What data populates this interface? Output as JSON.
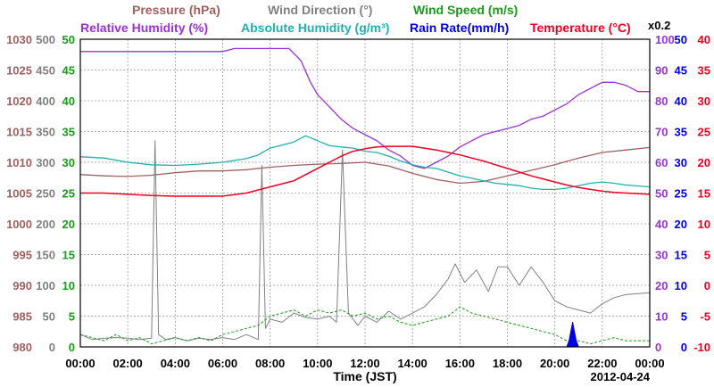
{
  "chart_data": {
    "type": "line",
    "date_label": "2012-04-24",
    "xlabel": "Time (JST)",
    "x_ticks": [
      "00:00",
      "02:00",
      "04:00",
      "06:00",
      "08:00",
      "10:00",
      "12:00",
      "14:00",
      "16:00",
      "18:00",
      "20:00",
      "22:00",
      "00:00"
    ],
    "xlim_hours": [
      0,
      24
    ],
    "grid": true,
    "scale_note": "x0.2",
    "colors": {
      "pressure": "#a0605f",
      "wind_direction": "#808080",
      "wind_speed": "#1a9a1a",
      "humidity": "#9b30d9",
      "abs_humidity": "#20b0b0",
      "rain": "#0000dd",
      "temperature": "#ee0022"
    },
    "header_rows": [
      [
        {
          "key": "pressure",
          "text": "Pressure (hPa)"
        },
        {
          "key": "wind_direction",
          "text": "Wind Direction (°)"
        },
        {
          "key": "wind_speed",
          "text": "Wind Speed (m/s)"
        }
      ],
      [
        {
          "key": "humidity",
          "text": "Relative Humidity (%)"
        },
        {
          "key": "abs_humidity",
          "text": "Absolute Humidity (g/m³)"
        },
        {
          "key": "rain",
          "text": "Rain Rate(mm/h)"
        },
        {
          "key": "temperature",
          "text": "Temperature (°C)"
        }
      ]
    ],
    "axes": [
      {
        "key": "pressure",
        "side": "left",
        "ticks": [
          "980",
          "985",
          "990",
          "995",
          "1000",
          "1005",
          "1010",
          "1015",
          "1020",
          "1025",
          "1030"
        ]
      },
      {
        "key": "wind_direction",
        "side": "left",
        "ticks": [
          "0",
          "50",
          "100",
          "150",
          "200",
          "250",
          "300",
          "350",
          "400",
          "450",
          "500"
        ]
      },
      {
        "key": "wind_speed",
        "side": "left",
        "ticks": [
          "0",
          "5",
          "10",
          "15",
          "20",
          "25",
          "30",
          "35",
          "40",
          "45",
          "50"
        ]
      },
      {
        "key": "humidity",
        "side": "right",
        "ticks": [
          "0",
          "10",
          "20",
          "30",
          "40",
          "50",
          "60",
          "70",
          "80",
          "90",
          "100"
        ]
      },
      {
        "key": "rain",
        "side": "right",
        "ticks": [
          "0",
          "5",
          "10",
          "15",
          "20",
          "25",
          "30",
          "35",
          "40",
          "45",
          "50"
        ]
      },
      {
        "key": "temperature",
        "side": "right",
        "ticks": [
          "-10",
          "-5",
          "0",
          "5",
          "10",
          "15",
          "20",
          "25",
          "30",
          "35",
          "40"
        ]
      }
    ],
    "series": [
      {
        "key": "pressure",
        "name": "Pressure (hPa)",
        "ylim": [
          980,
          1030
        ],
        "points": [
          [
            0,
            1008
          ],
          [
            1,
            1007.8
          ],
          [
            2,
            1007.7
          ],
          [
            3,
            1007.9
          ],
          [
            4,
            1008.3
          ],
          [
            5,
            1008.6
          ],
          [
            6,
            1008.6
          ],
          [
            7,
            1008.8
          ],
          [
            8,
            1009.2
          ],
          [
            9,
            1009.5
          ],
          [
            10,
            1009.7
          ],
          [
            11,
            1009.8
          ],
          [
            12,
            1010
          ],
          [
            13,
            1009.4
          ],
          [
            14,
            1008.2
          ],
          [
            15,
            1007.2
          ],
          [
            16,
            1006.6
          ],
          [
            17,
            1006.9
          ],
          [
            18,
            1007.8
          ],
          [
            19,
            1008.7
          ],
          [
            20,
            1009.6
          ],
          [
            21,
            1010.7
          ],
          [
            22,
            1011.6
          ],
          [
            23,
            1012
          ],
          [
            24,
            1012.4
          ]
        ]
      },
      {
        "key": "wind_direction",
        "name": "Wind Direction (°)",
        "ylim": [
          0,
          500
        ],
        "points": [
          [
            0,
            20
          ],
          [
            0.5,
            12
          ],
          [
            1,
            14
          ],
          [
            1.5,
            15
          ],
          [
            2,
            14
          ],
          [
            2.5,
            12
          ],
          [
            3,
            14
          ],
          [
            3.15,
            335
          ],
          [
            3.3,
            20
          ],
          [
            3.6,
            12
          ],
          [
            4,
            15
          ],
          [
            4.5,
            10
          ],
          [
            5,
            14
          ],
          [
            5.5,
            12
          ],
          [
            6,
            15
          ],
          [
            6.5,
            12
          ],
          [
            7,
            20
          ],
          [
            7.5,
            12
          ],
          [
            7.65,
            295
          ],
          [
            7.8,
            30
          ],
          [
            8,
            45
          ],
          [
            8.5,
            40
          ],
          [
            9,
            55
          ],
          [
            9.5,
            48
          ],
          [
            10,
            45
          ],
          [
            10.5,
            50
          ],
          [
            10.8,
            40
          ],
          [
            11.05,
            320
          ],
          [
            11.3,
            55
          ],
          [
            11.7,
            35
          ],
          [
            12,
            50
          ],
          [
            12.5,
            40
          ],
          [
            13,
            58
          ],
          [
            13.5,
            45
          ],
          [
            14,
            55
          ],
          [
            14.5,
            65
          ],
          [
            15,
            85
          ],
          [
            15.5,
            110
          ],
          [
            15.8,
            135
          ],
          [
            16.2,
            105
          ],
          [
            16.7,
            125
          ],
          [
            17.2,
            90
          ],
          [
            17.6,
            130
          ],
          [
            18,
            130
          ],
          [
            18.5,
            100
          ],
          [
            19,
            130
          ],
          [
            19.5,
            105
          ],
          [
            20,
            75
          ],
          [
            20.5,
            65
          ],
          [
            21,
            60
          ],
          [
            21.5,
            55
          ],
          [
            22,
            70
          ],
          [
            22.5,
            80
          ],
          [
            23,
            85
          ],
          [
            24,
            88
          ]
        ]
      },
      {
        "key": "wind_speed",
        "name": "Wind Speed (m/s)",
        "ylim": [
          0,
          50
        ],
        "points": [
          [
            0,
            2
          ],
          [
            0.5,
            1.5
          ],
          [
            1,
            1
          ],
          [
            1.5,
            2
          ],
          [
            2,
            1
          ],
          [
            2.5,
            1.5
          ],
          [
            3,
            0.5
          ],
          [
            3.5,
            1
          ],
          [
            4,
            1.5
          ],
          [
            4.5,
            1
          ],
          [
            5,
            1.5
          ],
          [
            5.5,
            1
          ],
          [
            6,
            2
          ],
          [
            6.5,
            2.5
          ],
          [
            7,
            3
          ],
          [
            7.5,
            3.5
          ],
          [
            8,
            5
          ],
          [
            8.5,
            5.5
          ],
          [
            9,
            6
          ],
          [
            9.5,
            5
          ],
          [
            10,
            6
          ],
          [
            10.5,
            5.5
          ],
          [
            11,
            6
          ],
          [
            11.5,
            5
          ],
          [
            12,
            5.5
          ],
          [
            12.5,
            4.5
          ],
          [
            13,
            5
          ],
          [
            13.5,
            4
          ],
          [
            14,
            3.5
          ],
          [
            14.5,
            4
          ],
          [
            15,
            4.5
          ],
          [
            15.5,
            5
          ],
          [
            16,
            6.5
          ],
          [
            16.5,
            5.5
          ],
          [
            17,
            5
          ],
          [
            17.5,
            4.5
          ],
          [
            18,
            4
          ],
          [
            18.5,
            3.5
          ],
          [
            19,
            3
          ],
          [
            19.5,
            2.5
          ],
          [
            20,
            2
          ],
          [
            20.5,
            1
          ],
          [
            21,
            1
          ],
          [
            21.5,
            0.5
          ],
          [
            22,
            1
          ],
          [
            22.5,
            1.5
          ],
          [
            23,
            1
          ],
          [
            24,
            1
          ]
        ]
      },
      {
        "key": "humidity",
        "name": "Relative Humidity (%)",
        "ylim": [
          0,
          100
        ],
        "points": [
          [
            0,
            96
          ],
          [
            2,
            96
          ],
          [
            4,
            96
          ],
          [
            6,
            96
          ],
          [
            6.5,
            97
          ],
          [
            7,
            97
          ],
          [
            8,
            97
          ],
          [
            8.8,
            97
          ],
          [
            9.3,
            93
          ],
          [
            9.7,
            86
          ],
          [
            10,
            82
          ],
          [
            10.5,
            78
          ],
          [
            11,
            74
          ],
          [
            11.5,
            71
          ],
          [
            12,
            69
          ],
          [
            12.5,
            67
          ],
          [
            13,
            64
          ],
          [
            13.5,
            62
          ],
          [
            14,
            59
          ],
          [
            14.5,
            58
          ],
          [
            15,
            60
          ],
          [
            15.5,
            62
          ],
          [
            16,
            65
          ],
          [
            16.5,
            67
          ],
          [
            17,
            69
          ],
          [
            17.5,
            70
          ],
          [
            18,
            71
          ],
          [
            18.5,
            72
          ],
          [
            19,
            74
          ],
          [
            19.5,
            75
          ],
          [
            20,
            77
          ],
          [
            20.5,
            79
          ],
          [
            21,
            82
          ],
          [
            21.5,
            84
          ],
          [
            22,
            86
          ],
          [
            22.5,
            86
          ],
          [
            23,
            85
          ],
          [
            23.5,
            83
          ],
          [
            24,
            83
          ]
        ]
      },
      {
        "key": "abs_humidity",
        "name": "Absolute Humidity (g/m³)",
        "ylim": [
          0,
          500
        ],
        "points": [
          [
            0,
            309
          ],
          [
            1,
            307
          ],
          [
            2,
            300
          ],
          [
            3,
            296
          ],
          [
            4,
            295
          ],
          [
            5,
            297
          ],
          [
            6,
            300
          ],
          [
            7,
            306
          ],
          [
            7.5,
            312
          ],
          [
            8,
            323
          ],
          [
            8.5,
            328
          ],
          [
            9,
            333
          ],
          [
            9.5,
            343
          ],
          [
            10,
            335
          ],
          [
            10.5,
            327
          ],
          [
            11,
            325
          ],
          [
            11.5,
            323
          ],
          [
            12,
            318
          ],
          [
            12.5,
            316
          ],
          [
            13,
            310
          ],
          [
            13.5,
            302
          ],
          [
            14,
            296
          ],
          [
            14.5,
            292
          ],
          [
            15,
            290
          ],
          [
            15.5,
            284
          ],
          [
            16,
            278
          ],
          [
            16.5,
            274
          ],
          [
            17,
            270
          ],
          [
            17.5,
            266
          ],
          [
            18,
            264
          ],
          [
            18.5,
            262
          ],
          [
            19,
            258
          ],
          [
            19.5,
            256
          ],
          [
            20,
            256
          ],
          [
            20.5,
            258
          ],
          [
            21,
            262
          ],
          [
            21.5,
            266
          ],
          [
            22,
            268
          ],
          [
            22.5,
            266
          ],
          [
            23,
            263
          ],
          [
            24,
            260
          ]
        ]
      },
      {
        "key": "rain",
        "name": "Rain Rate(mm/h)",
        "ylim": [
          0,
          50
        ],
        "points": [
          [
            0,
            0
          ],
          [
            20.5,
            0
          ],
          [
            20.6,
            1
          ],
          [
            20.75,
            4
          ],
          [
            20.9,
            1
          ],
          [
            21,
            0
          ],
          [
            24,
            0
          ]
        ]
      },
      {
        "key": "temperature",
        "name": "Temperature (°C)",
        "ylim": [
          -10,
          40
        ],
        "points": [
          [
            0,
            15
          ],
          [
            1,
            15
          ],
          [
            2,
            14.8
          ],
          [
            3,
            14.6
          ],
          [
            4,
            14.5
          ],
          [
            5,
            14.5
          ],
          [
            6,
            14.5
          ],
          [
            7,
            15
          ],
          [
            7.5,
            15.5
          ],
          [
            8,
            16
          ],
          [
            8.5,
            16.5
          ],
          [
            9,
            17
          ],
          [
            9.5,
            18
          ],
          [
            10,
            19
          ],
          [
            10.5,
            20
          ],
          [
            11,
            21
          ],
          [
            11.5,
            21.8
          ],
          [
            12,
            22.2
          ],
          [
            12.5,
            22.5
          ],
          [
            13,
            22.6
          ],
          [
            13.5,
            22.6
          ],
          [
            14,
            22.6
          ],
          [
            14.5,
            22.3
          ],
          [
            15,
            22
          ],
          [
            15.5,
            21.6
          ],
          [
            16,
            21.2
          ],
          [
            16.5,
            20.7
          ],
          [
            17,
            20.2
          ],
          [
            17.5,
            19.6
          ],
          [
            18,
            19
          ],
          [
            18.5,
            18.4
          ],
          [
            19,
            17.8
          ],
          [
            19.5,
            17.3
          ],
          [
            20,
            16.8
          ],
          [
            20.5,
            16.3
          ],
          [
            21,
            15.9
          ],
          [
            21.5,
            15.6
          ],
          [
            22,
            15.3
          ],
          [
            22.5,
            15.1
          ],
          [
            23,
            15
          ],
          [
            24,
            14.8
          ]
        ]
      }
    ]
  }
}
